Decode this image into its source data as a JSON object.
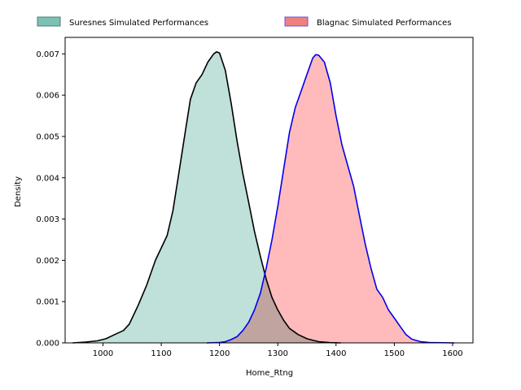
{
  "chart_data": {
    "type": "area",
    "xlabel": "Home_Rtng",
    "ylabel": "Density",
    "xlim": [
      935,
      1635
    ],
    "ylim": [
      0,
      0.0074
    ],
    "x_ticks": [
      1000,
      1100,
      1200,
      1300,
      1400,
      1500,
      1600
    ],
    "x_tick_labels": [
      "1000",
      "1100",
      "1200",
      "1300",
      "1400",
      "1500",
      "1600"
    ],
    "y_ticks": [
      0,
      0.001,
      0.002,
      0.003,
      0.004,
      0.005,
      0.006,
      0.007
    ],
    "y_tick_labels": [
      "0.000",
      "0.001",
      "0.002",
      "0.003",
      "0.004",
      "0.005",
      "0.006",
      "0.007"
    ],
    "grid": false,
    "legend_position": "top",
    "series": [
      {
        "name": "Suresnes Simulated Performances",
        "fill_color": "#c0e0da",
        "legend_color": "#7cc1b3",
        "line_color": "#000000",
        "points": [
          [
            948,
            0.0
          ],
          [
            970,
            2e-05
          ],
          [
            990,
            5e-05
          ],
          [
            1005,
            0.0001
          ],
          [
            1020,
            0.0002
          ],
          [
            1035,
            0.0003
          ],
          [
            1045,
            0.00045
          ],
          [
            1060,
            0.0009
          ],
          [
            1075,
            0.0014
          ],
          [
            1090,
            0.002
          ],
          [
            1110,
            0.0026
          ],
          [
            1120,
            0.0032
          ],
          [
            1130,
            0.0041
          ],
          [
            1140,
            0.005
          ],
          [
            1150,
            0.0059
          ],
          [
            1160,
            0.0063
          ],
          [
            1170,
            0.0065
          ],
          [
            1180,
            0.0068
          ],
          [
            1190,
            0.007
          ],
          [
            1195,
            0.00705
          ],
          [
            1200,
            0.00702
          ],
          [
            1210,
            0.0066
          ],
          [
            1220,
            0.0058
          ],
          [
            1230,
            0.0049
          ],
          [
            1240,
            0.0041
          ],
          [
            1250,
            0.0034
          ],
          [
            1260,
            0.0027
          ],
          [
            1270,
            0.0021
          ],
          [
            1280,
            0.00155
          ],
          [
            1290,
            0.0011
          ],
          [
            1300,
            0.0008
          ],
          [
            1310,
            0.00055
          ],
          [
            1320,
            0.00035
          ],
          [
            1335,
            0.0002
          ],
          [
            1350,
            0.0001
          ],
          [
            1370,
            3e-05
          ],
          [
            1390,
            5e-06
          ],
          [
            1408,
            0.0
          ]
        ]
      },
      {
        "name": "Blagnac Simulated Performances",
        "fill_color": "#ffbbbb",
        "legend_color": "#f08080",
        "legend_edge": "#6a4fe0",
        "line_color": "#0000ee",
        "points": [
          [
            1178,
            0.0
          ],
          [
            1200,
            1e-05
          ],
          [
            1210,
            3e-05
          ],
          [
            1220,
            8e-05
          ],
          [
            1230,
            0.00015
          ],
          [
            1240,
            0.0003
          ],
          [
            1250,
            0.0005
          ],
          [
            1260,
            0.0008
          ],
          [
            1270,
            0.0012
          ],
          [
            1280,
            0.0018
          ],
          [
            1290,
            0.0025
          ],
          [
            1300,
            0.0033
          ],
          [
            1310,
            0.0042
          ],
          [
            1320,
            0.0051
          ],
          [
            1330,
            0.0057
          ],
          [
            1340,
            0.0061
          ],
          [
            1350,
            0.0065
          ],
          [
            1360,
            0.0069
          ],
          [
            1365,
            0.00698
          ],
          [
            1370,
            0.00697
          ],
          [
            1380,
            0.0068
          ],
          [
            1390,
            0.0063
          ],
          [
            1400,
            0.0055
          ],
          [
            1410,
            0.0048
          ],
          [
            1420,
            0.0043
          ],
          [
            1430,
            0.0038
          ],
          [
            1440,
            0.0031
          ],
          [
            1450,
            0.0024
          ],
          [
            1460,
            0.0018
          ],
          [
            1470,
            0.0013
          ],
          [
            1480,
            0.0011
          ],
          [
            1490,
            0.0008
          ],
          [
            1500,
            0.0006
          ],
          [
            1510,
            0.0004
          ],
          [
            1520,
            0.0002
          ],
          [
            1530,
            9e-05
          ],
          [
            1545,
            3e-05
          ],
          [
            1560,
            1e-05
          ],
          [
            1603,
            0.0
          ]
        ]
      }
    ]
  }
}
